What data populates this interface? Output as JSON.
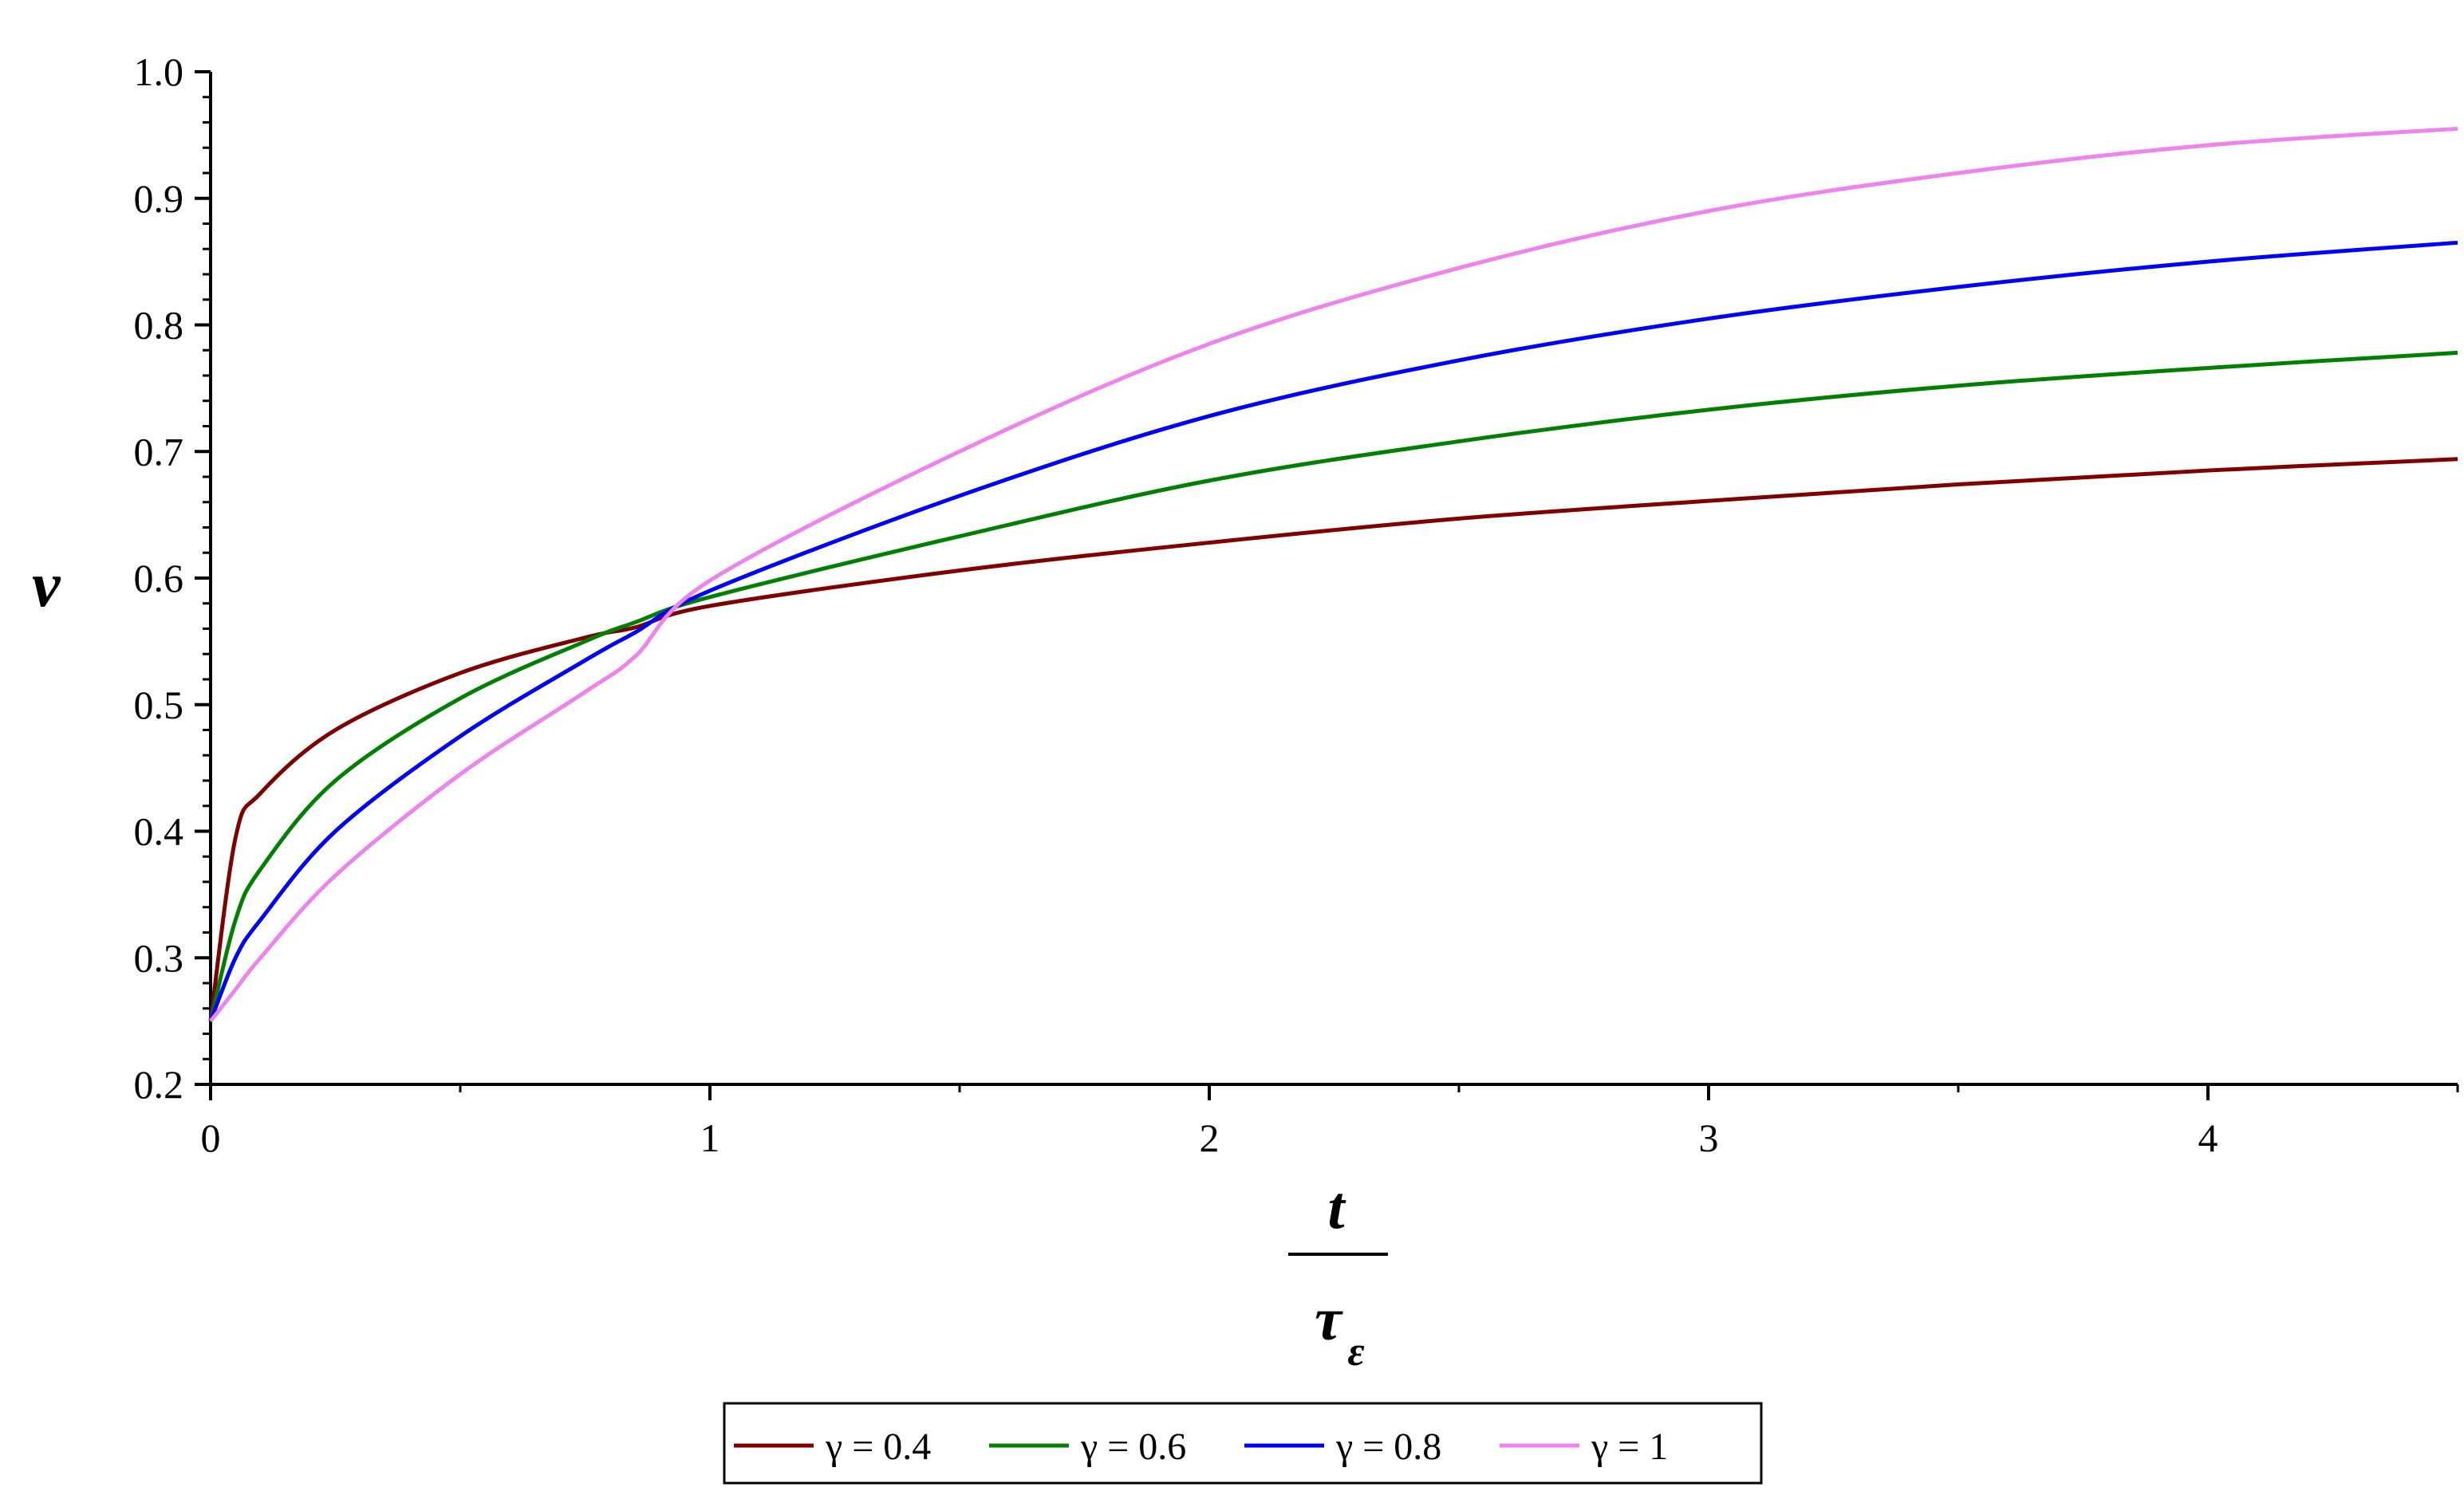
{
  "chart_data": {
    "type": "line",
    "xlabel": {
      "numerator": "t",
      "denominator": "τ",
      "subscript": "ε"
    },
    "ylabel": "ν",
    "xlim": [
      0,
      4.5
    ],
    "ylim": [
      0.2,
      1.0
    ],
    "x_ticks": [
      0,
      1,
      2,
      3,
      4
    ],
    "x_tick_labels": [
      "0",
      "1",
      "2",
      "3",
      "4"
    ],
    "y_ticks": [
      0.2,
      0.3,
      0.4,
      0.5,
      0.6,
      0.7,
      0.8,
      0.9,
      1.0
    ],
    "y_tick_labels": [
      "0.2",
      "0.3",
      "0.4",
      "0.5",
      "0.6",
      "0.7",
      "0.8",
      "0.9",
      "1.0"
    ],
    "grid": false,
    "legend_position": "bottom-center",
    "x": [
      0,
      0.05,
      0.1,
      0.25,
      0.5,
      0.75,
      0.85,
      1,
      1.5,
      2,
      2.5,
      3,
      3.5,
      4,
      4.5
    ],
    "series": [
      {
        "name": "γ = 0.4",
        "color": "#800000",
        "values": [
          0.25,
          0.395,
          0.43,
          0.48,
          0.525,
          0.553,
          0.561,
          0.578,
          0.606,
          0.628,
          0.647,
          0.661,
          0.674,
          0.685,
          0.694
        ]
      },
      {
        "name": "γ = 0.6",
        "color": "#008000",
        "values": [
          0.25,
          0.33,
          0.37,
          0.44,
          0.505,
          0.55,
          0.565,
          0.585,
          0.633,
          0.677,
          0.708,
          0.733,
          0.752,
          0.766,
          0.778
        ]
      },
      {
        "name": "γ = 0.8",
        "color": "#0000ff",
        "values": [
          0.25,
          0.3,
          0.33,
          0.4,
          0.475,
          0.535,
          0.557,
          0.59,
          0.665,
          0.728,
          0.772,
          0.805,
          0.83,
          0.85,
          0.865
        ]
      },
      {
        "name": "γ = 1",
        "color": "#ee82ee",
        "values": [
          0.25,
          0.275,
          0.3,
          0.365,
          0.445,
          0.51,
          0.538,
          0.598,
          0.7,
          0.785,
          0.845,
          0.89,
          0.92,
          0.942,
          0.955
        ]
      }
    ]
  }
}
